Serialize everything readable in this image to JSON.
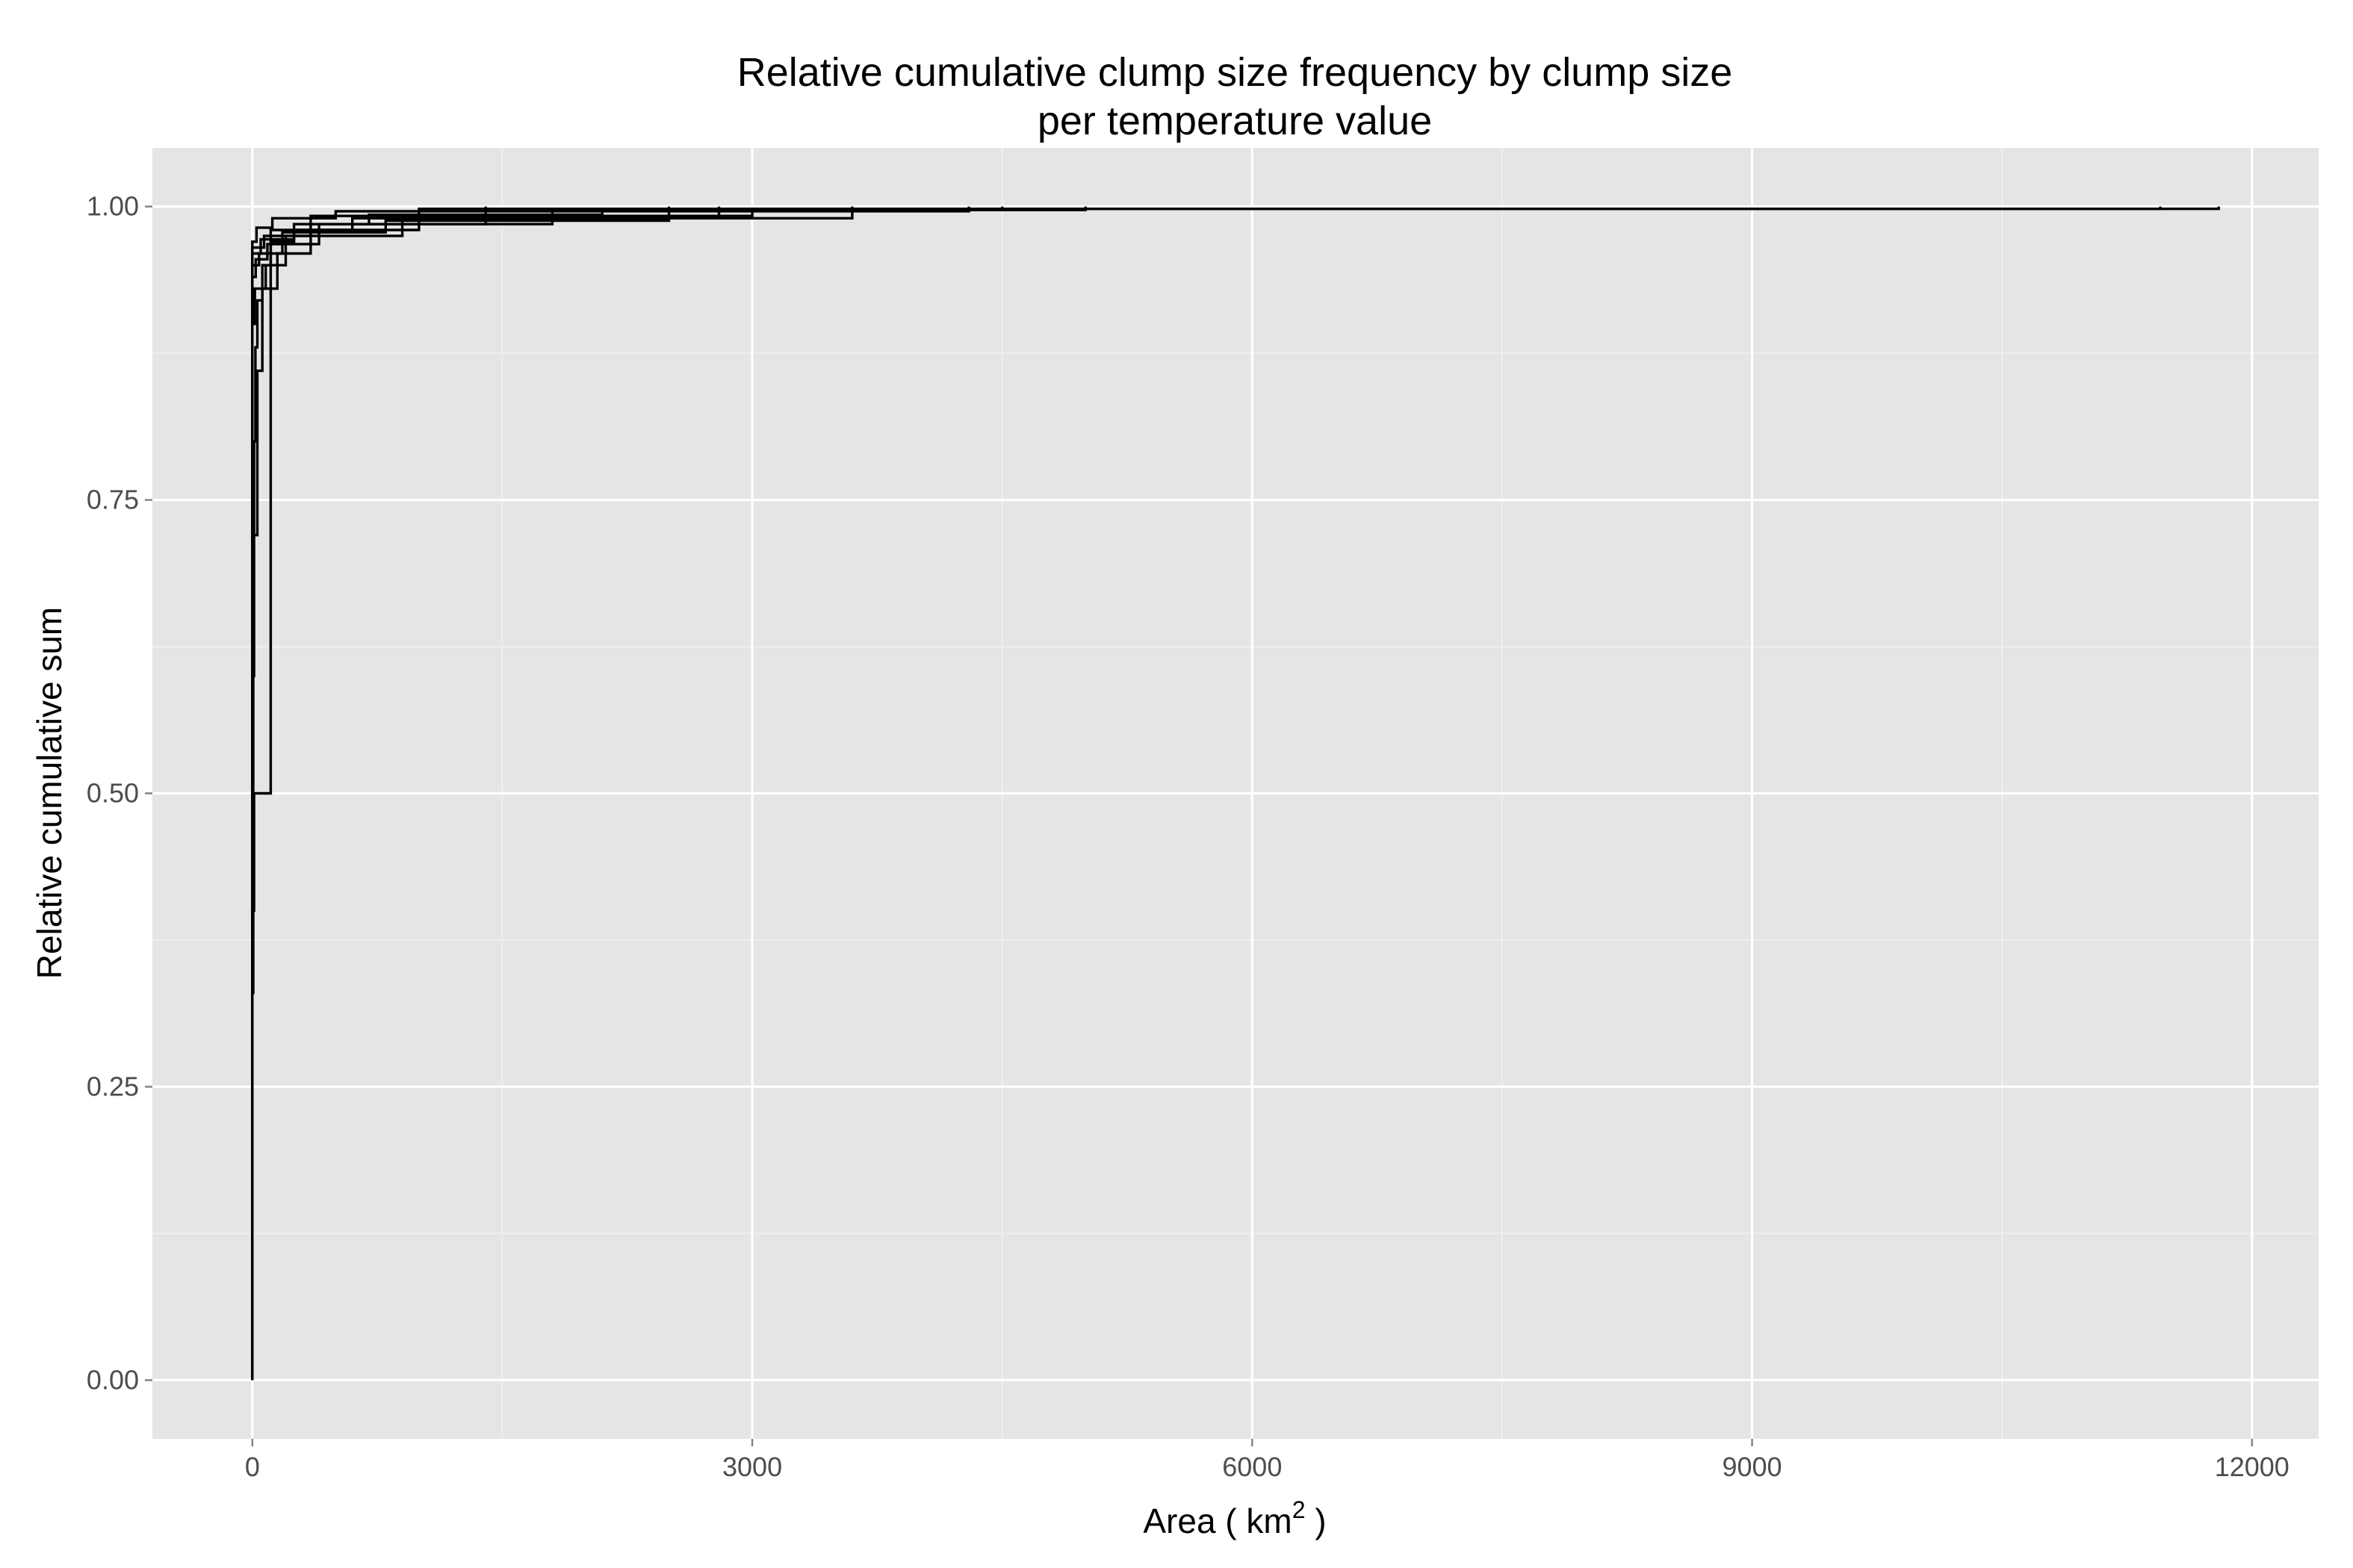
{
  "chart_data": {
    "type": "line",
    "step": true,
    "title": "Relative cumulative clump size frequency by clump size",
    "subtitle": "per temperature value",
    "xlabel_main": "Area ( km",
    "xlabel_sup": "2",
    "xlabel_end": " )",
    "ylabel": "Relative cumulative sum",
    "xlim": [
      -600,
      12400
    ],
    "ylim": [
      -0.05,
      1.05
    ],
    "x_ticks": [
      0,
      3000,
      6000,
      9000,
      12000
    ],
    "x_tick_labels": [
      "0",
      "3000",
      "6000",
      "9000",
      "12000"
    ],
    "y_ticks": [
      0,
      0.25,
      0.5,
      0.75,
      1.0
    ],
    "y_tick_labels": [
      "0.00",
      "0.25",
      "0.50",
      "0.75",
      "1.00"
    ],
    "grid": true,
    "background": "#e5e5e5",
    "line_color": "#000000",
    "series": [
      {
        "x": [
          0,
          0,
          5,
          5,
          10,
          10,
          18,
          18,
          30,
          30,
          60,
          60,
          110,
          110,
          250,
          250,
          700,
          700,
          2100,
          2100,
          11800,
          11800
        ],
        "y": [
          0,
          0.33,
          0.33,
          0.6,
          0.6,
          0.8,
          0.8,
          0.88,
          0.88,
          0.92,
          0.92,
          0.95,
          0.95,
          0.97,
          0.97,
          0.985,
          0.985,
          0.993,
          0.993,
          0.998,
          0.998,
          1.0
        ]
      },
      {
        "x": [
          0,
          0,
          10,
          10,
          40,
          40,
          110,
          110,
          1000,
          1000,
          11450,
          11450
        ],
        "y": [
          0,
          0.4,
          0.4,
          0.5,
          0.5,
          0.5,
          0.5,
          0.98,
          0.98,
          0.998,
          0.998,
          1.0
        ]
      },
      {
        "x": [
          0,
          0,
          30,
          30,
          60,
          60,
          150,
          150,
          350,
          350,
          1800,
          1800,
          4500,
          4500
        ],
        "y": [
          0,
          0.72,
          0.72,
          0.86,
          0.86,
          0.93,
          0.93,
          0.96,
          0.96,
          0.985,
          0.985,
          0.997,
          0.997,
          1.0
        ]
      },
      {
        "x": [
          0,
          0,
          15,
          15,
          80,
          80,
          200,
          200,
          900,
          900,
          3600,
          3600
        ],
        "y": [
          0,
          0.9,
          0.9,
          0.93,
          0.93,
          0.95,
          0.95,
          0.975,
          0.975,
          0.99,
          0.99,
          1.0
        ]
      },
      {
        "x": [
          0,
          0,
          20,
          20,
          90,
          90,
          400,
          400,
          1400,
          1400
        ],
        "y": [
          0,
          0.94,
          0.94,
          0.955,
          0.955,
          0.968,
          0.968,
          0.985,
          0.985,
          1.0
        ]
      },
      {
        "x": [
          0,
          0,
          50,
          50,
          250,
          250,
          600,
          600,
          2800,
          2800
        ],
        "y": [
          0,
          0.96,
          0.96,
          0.972,
          0.972,
          0.98,
          0.98,
          0.99,
          0.99,
          1.0
        ]
      },
      {
        "x": [
          0,
          0,
          70,
          70,
          350,
          350,
          3000,
          3000,
          5000,
          5000
        ],
        "y": [
          0,
          0.965,
          0.965,
          0.975,
          0.975,
          0.992,
          0.992,
          0.997,
          0.997,
          1.0
        ]
      },
      {
        "x": [
          0,
          0,
          40,
          40,
          180,
          180,
          800,
          800,
          2500,
          2500
        ],
        "y": [
          0,
          0.95,
          0.95,
          0.96,
          0.96,
          0.978,
          0.978,
          0.988,
          0.988,
          1.0
        ]
      },
      {
        "x": [
          0,
          0,
          25,
          25,
          120,
          120,
          500,
          500,
          4300,
          4300
        ],
        "y": [
          0,
          0.97,
          0.97,
          0.982,
          0.982,
          0.99,
          0.99,
          0.996,
          0.996,
          1.0
        ]
      }
    ]
  }
}
